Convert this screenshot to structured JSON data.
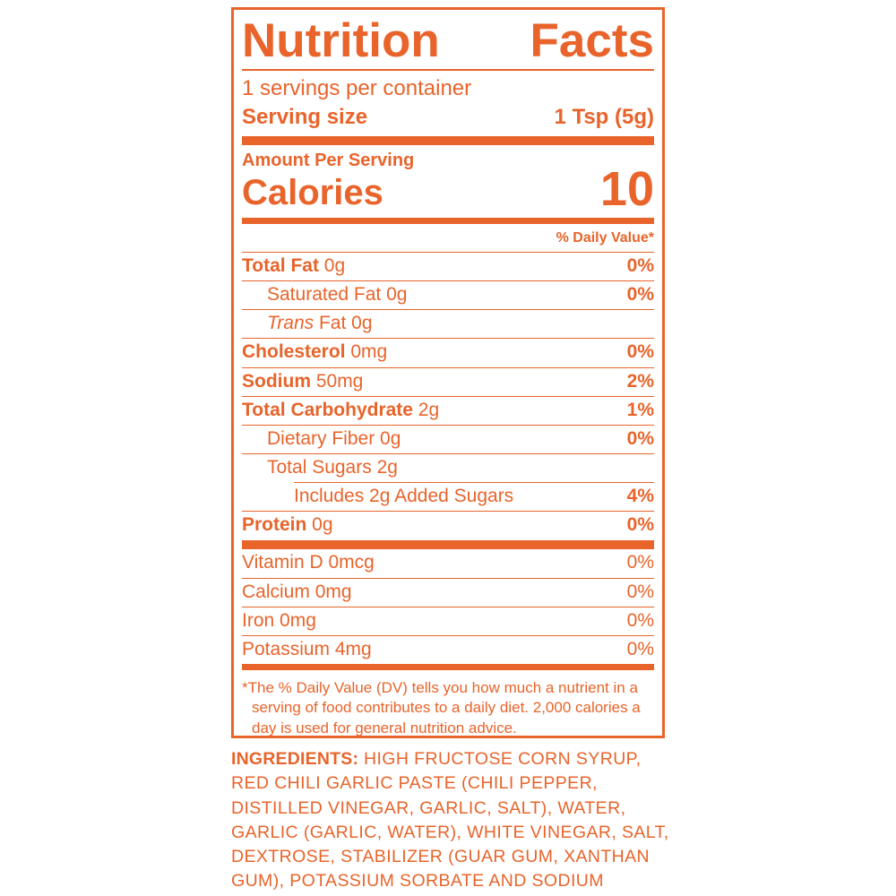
{
  "colors": {
    "accent": "#E8642B",
    "background": "#FFFFFF"
  },
  "label": {
    "title_left": "Nutrition",
    "title_right": "Facts",
    "servings_per_container": "1 servings per container",
    "serving_size_label": "Serving size",
    "serving_size_value": "1 Tsp (5g)",
    "amount_per_serving": "Amount Per Serving",
    "calories_label": "Calories",
    "calories_value": "10",
    "daily_value_header": "% Daily Value*",
    "nutrients": [
      {
        "name": "Total Fat",
        "amount": "0g",
        "dv": "0%",
        "name_bold": true,
        "name_italic": false,
        "indent": 0,
        "divider": "full",
        "dv_bold": true
      },
      {
        "name": "Saturated Fat",
        "amount": "0g",
        "dv": "0%",
        "name_bold": false,
        "name_italic": false,
        "indent": 1,
        "divider": "full",
        "dv_bold": true
      },
      {
        "name": "Trans",
        "amount": "Fat 0g",
        "dv": "",
        "name_bold": false,
        "name_italic": true,
        "indent": 1,
        "divider": "full",
        "dv_bold": true
      },
      {
        "name": "Cholesterol",
        "amount": "0mg",
        "dv": "0%",
        "name_bold": true,
        "name_italic": false,
        "indent": 0,
        "divider": "full",
        "dv_bold": true
      },
      {
        "name": "Sodium",
        "amount": "50mg",
        "dv": "2%",
        "name_bold": true,
        "name_italic": false,
        "indent": 0,
        "divider": "full",
        "dv_bold": true
      },
      {
        "name": "Total Carbohydrate",
        "amount": "2g",
        "dv": "1%",
        "name_bold": true,
        "name_italic": false,
        "indent": 0,
        "divider": "full",
        "dv_bold": true
      },
      {
        "name": "Dietary Fiber",
        "amount": "0g",
        "dv": "0%",
        "name_bold": false,
        "name_italic": false,
        "indent": 1,
        "divider": "full",
        "dv_bold": true
      },
      {
        "name": "Total Sugars",
        "amount": "2g",
        "dv": "",
        "name_bold": false,
        "name_italic": false,
        "indent": 1,
        "divider": "full",
        "dv_bold": true
      },
      {
        "name": "Includes 2g Added Sugars",
        "amount": "",
        "dv": "4%",
        "name_bold": false,
        "name_italic": false,
        "indent": 2,
        "divider": "indent",
        "dv_bold": true
      },
      {
        "name": "Protein",
        "amount": "0g",
        "dv": "0%",
        "name_bold": true,
        "name_italic": false,
        "indent": 0,
        "divider": "full",
        "dv_bold": true
      }
    ],
    "vitamins": [
      {
        "name": "Vitamin D",
        "amount": "0mcg",
        "dv": "0%",
        "name_bold": false,
        "name_italic": false,
        "indent": 0,
        "divider": "none",
        "dv_bold": false
      },
      {
        "name": "Calcium",
        "amount": "0mg",
        "dv": "0%",
        "name_bold": false,
        "name_italic": false,
        "indent": 0,
        "divider": "full",
        "dv_bold": false
      },
      {
        "name": "Iron",
        "amount": "0mg",
        "dv": "0%",
        "name_bold": false,
        "name_italic": false,
        "indent": 0,
        "divider": "full",
        "dv_bold": false
      },
      {
        "name": "Potassium",
        "amount": "4mg",
        "dv": "0%",
        "name_bold": false,
        "name_italic": false,
        "indent": 0,
        "divider": "full",
        "dv_bold": false
      }
    ],
    "footnote_marker": "*",
    "footnote_text": "The % Daily Value (DV) tells you how much a nutrient in a serving of food contributes to a daily diet. 2,000 calories a day is used for general nutrition advice."
  },
  "ingredients": {
    "label": "INGREDIENTS:",
    "text": " HIGH FRUCTOSE CORN SYRUP, RED CHILI GARLIC PASTE (CHILI PEPPER, DISTILLED VINEGAR, GARLIC, SALT), WATER, GARLIC (GARLIC, WATER), WHITE VINEGAR, SALT, DEXTROSE, STABILIZER (GUAR GUM, XANTHAN GUM), POTASSIUM SORBATE AND SODIUM BENZOATE (PRESERVATIVES)."
  }
}
